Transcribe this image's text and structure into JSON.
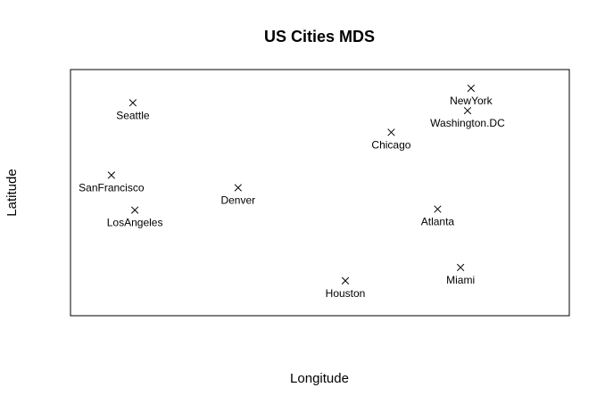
{
  "chart_data": {
    "type": "scatter",
    "title": "US Cities MDS",
    "xlabel": "Longitude",
    "ylabel": "Latitude",
    "xlim": [
      0,
      100
    ],
    "ylim": [
      0,
      100
    ],
    "grid": false,
    "axes_ticks": false,
    "marker": "x",
    "marker_color": "#000000",
    "points": [
      {
        "label": "Seattle",
        "x": 12.5,
        "y": 86.5
      },
      {
        "label": "NewYork",
        "x": 80.3,
        "y": 92.4
      },
      {
        "label": "Washington.DC",
        "x": 79.6,
        "y": 83.3
      },
      {
        "label": "Chicago",
        "x": 64.3,
        "y": 74.5
      },
      {
        "label": "SanFrancisco",
        "x": 8.2,
        "y": 57.1
      },
      {
        "label": "Denver",
        "x": 33.6,
        "y": 52.0
      },
      {
        "label": "LosAngeles",
        "x": 12.9,
        "y": 42.9
      },
      {
        "label": "Atlanta",
        "x": 73.6,
        "y": 43.3
      },
      {
        "label": "Miami",
        "x": 78.2,
        "y": 19.6
      },
      {
        "label": "Houston",
        "x": 55.1,
        "y": 14.2
      }
    ]
  }
}
